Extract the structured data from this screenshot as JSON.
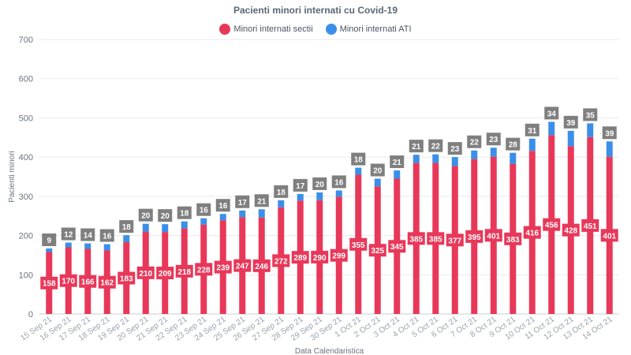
{
  "chart_data": {
    "type": "bar",
    "stacked": true,
    "title": "Pacienti minori internati cu Covid-19",
    "xlabel": "Data Calendaristica",
    "ylabel": "Pacienti minori",
    "ylim": [
      0,
      700
    ],
    "yticks": [
      0,
      100,
      200,
      300,
      400,
      500,
      600,
      700
    ],
    "grid": true,
    "legend_position": "top-center",
    "categories": [
      "15 Sep 21",
      "16 Sep 21",
      "17 Sep 21",
      "18 Sep 21",
      "19 Sep 21",
      "20 Sep 21",
      "21 Sep 21",
      "22 Sep 21",
      "23 Sep 21",
      "24 Sep 21",
      "25 Sep 21",
      "26 Sep 21",
      "27 Sep 21",
      "28 Sep 21",
      "29 Sep 21",
      "30 Sep 21",
      "1 Oct 21",
      "2 Oct 21",
      "3 Oct 21",
      "4 Oct 21",
      "5 Oct 21",
      "6 Oct 21",
      "7 Oct 21",
      "8 Oct 21",
      "9 Oct 21",
      "10 Oct 21",
      "11 Oct 21",
      "12 Oct 21",
      "13 Oct 21",
      "14 Oct 21"
    ],
    "series": [
      {
        "name": "Minori internati sectii",
        "color": "#e8385a",
        "values": [
          158,
          170,
          166,
          162,
          183,
          210,
          209,
          218,
          228,
          239,
          247,
          246,
          272,
          289,
          290,
          299,
          355,
          325,
          345,
          385,
          385,
          377,
          395,
          401,
          383,
          416,
          456,
          428,
          451,
          401
        ]
      },
      {
        "name": "Minori internati ATI",
        "color": "#3b8fe8",
        "values": [
          9,
          12,
          14,
          16,
          18,
          20,
          20,
          18,
          16,
          16,
          17,
          21,
          18,
          17,
          20,
          16,
          18,
          20,
          21,
          21,
          22,
          23,
          22,
          23,
          28,
          31,
          34,
          39,
          35,
          39
        ]
      }
    ]
  }
}
